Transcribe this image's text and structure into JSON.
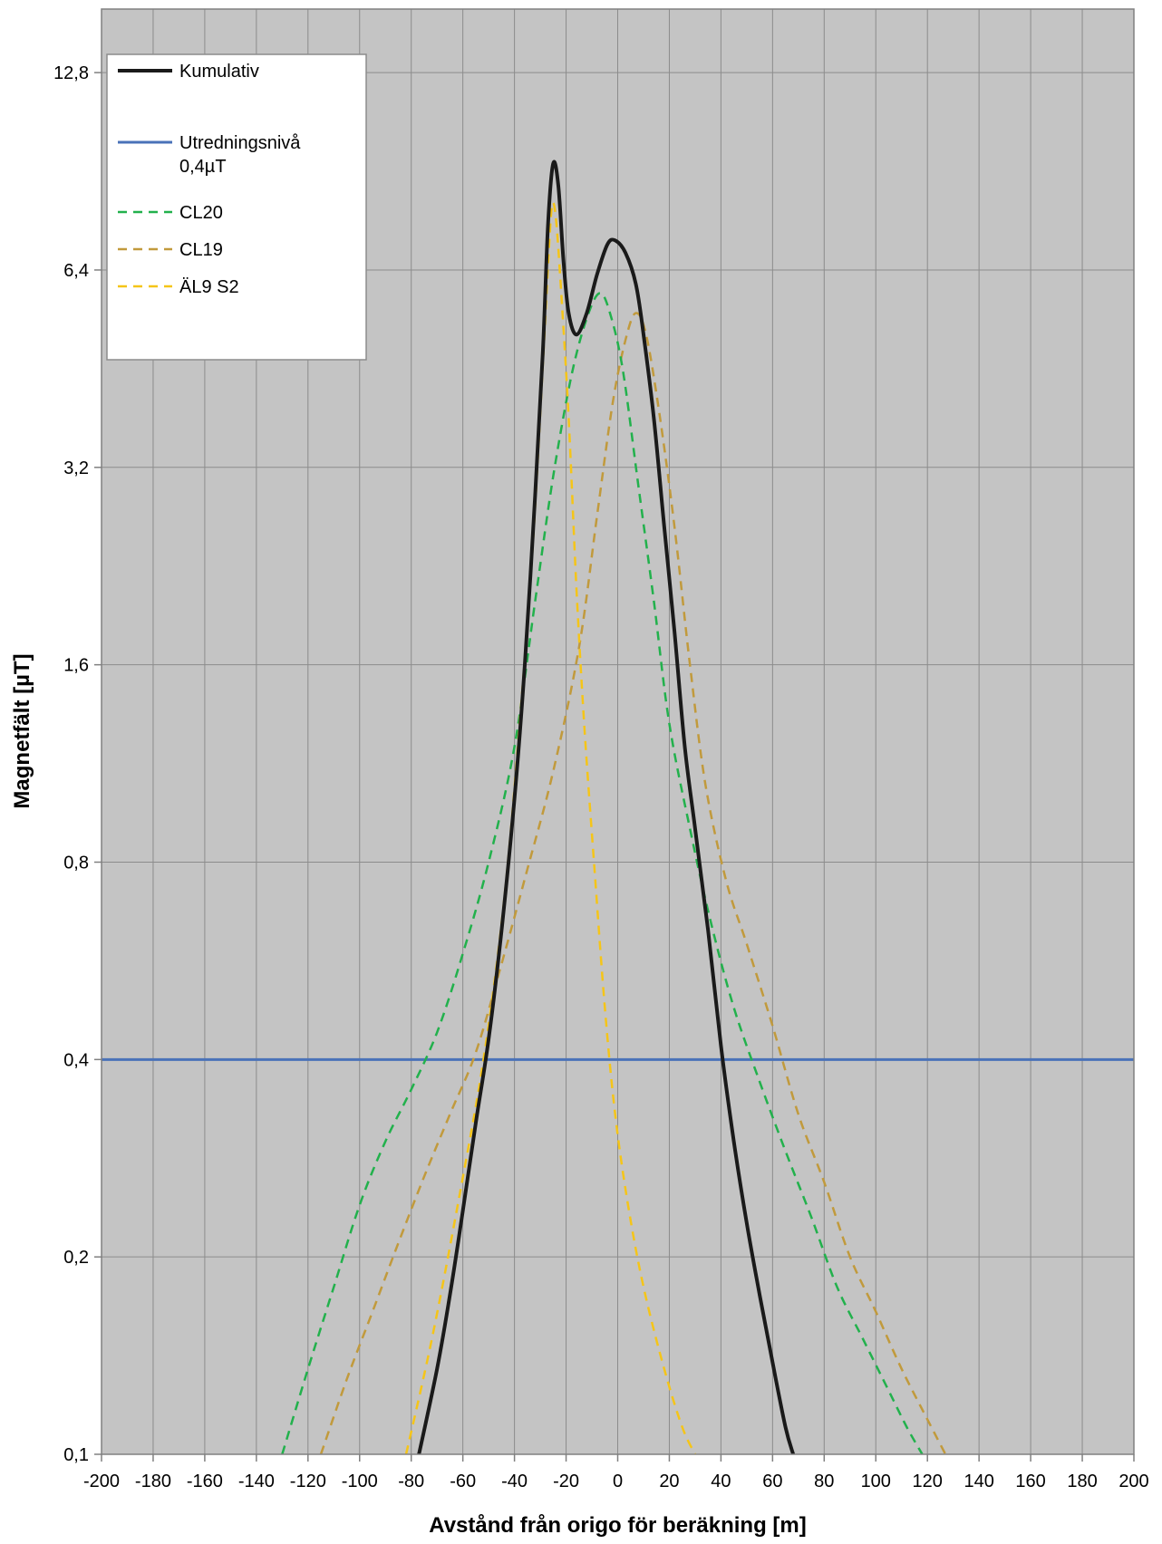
{
  "chart_data": {
    "type": "line",
    "title": "",
    "xlabel": "Avstånd från origo för beräkning [m]",
    "ylabel": "Magnetfält [µT]",
    "xlim": [
      -200,
      200
    ],
    "ylim": [
      0.1,
      16
    ],
    "y_scale": "log2",
    "x_ticks": [
      -200,
      -180,
      -160,
      -140,
      -120,
      -100,
      -80,
      -60,
      -40,
      -20,
      0,
      20,
      40,
      60,
      80,
      100,
      120,
      140,
      160,
      180,
      200
    ],
    "x_tick_labels": [
      "-200",
      "-180",
      "-160",
      "-140",
      "-120",
      "-100",
      "-80",
      "-60",
      "-40",
      "-20",
      "0",
      "20",
      "40",
      "60",
      "80",
      "100",
      "120",
      "140",
      "160",
      "180",
      "200"
    ],
    "y_ticks": [
      0.1,
      0.2,
      0.4,
      0.8,
      1.6,
      3.2,
      6.4,
      12.8
    ],
    "y_tick_labels": [
      "0,1",
      "0,2",
      "0,4",
      "0,8",
      "1,6",
      "3,2",
      "6,4",
      "12,8"
    ],
    "grid": true,
    "background_color": "#c4c4c4",
    "legend_position": "top-left",
    "series": [
      {
        "name": "Kumulativ",
        "style": "solid",
        "color": "#1a1a1a",
        "points": [
          [
            -77,
            0.1
          ],
          [
            -70,
            0.135
          ],
          [
            -65,
            0.175
          ],
          [
            -60,
            0.235
          ],
          [
            -55,
            0.32
          ],
          [
            -50,
            0.43
          ],
          [
            -45,
            0.63
          ],
          [
            -40,
            1.0
          ],
          [
            -36,
            1.6
          ],
          [
            -32,
            2.9
          ],
          [
            -29,
            4.8
          ],
          [
            -27,
            7.5
          ],
          [
            -25,
            9.3
          ],
          [
            -23,
            8.6
          ],
          [
            -21,
            6.6
          ],
          [
            -19,
            5.5
          ],
          [
            -16,
            5.1
          ],
          [
            -12,
            5.5
          ],
          [
            -8,
            6.3
          ],
          [
            -4,
            7.0
          ],
          [
            -1,
            7.1
          ],
          [
            3,
            6.8
          ],
          [
            7,
            6.1
          ],
          [
            10,
            5.1
          ],
          [
            14,
            3.8
          ],
          [
            18,
            2.6
          ],
          [
            22,
            1.8
          ],
          [
            26,
            1.2
          ],
          [
            30,
            0.9
          ],
          [
            35,
            0.63
          ],
          [
            40,
            0.42
          ],
          [
            45,
            0.3
          ],
          [
            50,
            0.225
          ],
          [
            55,
            0.175
          ],
          [
            60,
            0.138
          ],
          [
            65,
            0.11
          ],
          [
            68,
            0.1
          ]
        ]
      },
      {
        "name": "Utredningsnivå 0,4µT",
        "style": "solid",
        "color": "#4a72b8",
        "points": [
          [
            -200,
            0.4
          ],
          [
            200,
            0.4
          ]
        ]
      },
      {
        "name": "CL20",
        "style": "dashed",
        "color": "#22b14c",
        "points": [
          [
            -130,
            0.1
          ],
          [
            -120,
            0.135
          ],
          [
            -110,
            0.18
          ],
          [
            -100,
            0.24
          ],
          [
            -90,
            0.3
          ],
          [
            -80,
            0.36
          ],
          [
            -70,
            0.44
          ],
          [
            -60,
            0.58
          ],
          [
            -50,
            0.8
          ],
          [
            -40,
            1.2
          ],
          [
            -32,
            2.0
          ],
          [
            -25,
            3.1
          ],
          [
            -18,
            4.4
          ],
          [
            -12,
            5.4
          ],
          [
            -7,
            5.9
          ],
          [
            -3,
            5.5
          ],
          [
            2,
            4.5
          ],
          [
            8,
            3.0
          ],
          [
            14,
            2.0
          ],
          [
            20,
            1.3
          ],
          [
            28,
            0.9
          ],
          [
            36,
            0.65
          ],
          [
            45,
            0.48
          ],
          [
            55,
            0.37
          ],
          [
            65,
            0.29
          ],
          [
            75,
            0.23
          ],
          [
            85,
            0.18
          ],
          [
            95,
            0.15
          ],
          [
            105,
            0.125
          ],
          [
            112,
            0.11
          ],
          [
            118,
            0.1
          ]
        ]
      },
      {
        "name": "CL19",
        "style": "dashed",
        "color": "#c19a3c",
        "points": [
          [
            -115,
            0.1
          ],
          [
            -105,
            0.13
          ],
          [
            -95,
            0.165
          ],
          [
            -85,
            0.21
          ],
          [
            -75,
            0.265
          ],
          [
            -65,
            0.33
          ],
          [
            -55,
            0.41
          ],
          [
            -45,
            0.56
          ],
          [
            -35,
            0.78
          ],
          [
            -25,
            1.1
          ],
          [
            -15,
            1.7
          ],
          [
            -8,
            2.7
          ],
          [
            -2,
            4.0
          ],
          [
            3,
            5.0
          ],
          [
            7,
            5.5
          ],
          [
            11,
            5.1
          ],
          [
            16,
            3.9
          ],
          [
            22,
            2.6
          ],
          [
            28,
            1.6
          ],
          [
            34,
            1.05
          ],
          [
            42,
            0.75
          ],
          [
            50,
            0.6
          ],
          [
            60,
            0.45
          ],
          [
            70,
            0.33
          ],
          [
            80,
            0.26
          ],
          [
            90,
            0.2
          ],
          [
            100,
            0.165
          ],
          [
            110,
            0.135
          ],
          [
            120,
            0.113
          ],
          [
            127,
            0.1
          ]
        ]
      },
      {
        "name": "ÄL9 S2",
        "style": "dashed",
        "color": "#f5c518",
        "points": [
          [
            -82,
            0.1
          ],
          [
            -72,
            0.15
          ],
          [
            -62,
            0.24
          ],
          [
            -52,
            0.4
          ],
          [
            -44,
            0.7
          ],
          [
            -38,
            1.3
          ],
          [
            -33,
            2.4
          ],
          [
            -29,
            4.6
          ],
          [
            -27,
            6.5
          ],
          [
            -25.5,
            8.0
          ],
          [
            -24,
            7.7
          ],
          [
            -22,
            6.0
          ],
          [
            -19,
            3.8
          ],
          [
            -16,
            2.1
          ],
          [
            -13,
            1.3
          ],
          [
            -9,
            0.78
          ],
          [
            -5,
            0.48
          ],
          [
            -1,
            0.33
          ],
          [
            4,
            0.24
          ],
          [
            10,
            0.18
          ],
          [
            18,
            0.135
          ],
          [
            25,
            0.11
          ],
          [
            30,
            0.1
          ]
        ]
      }
    ]
  }
}
